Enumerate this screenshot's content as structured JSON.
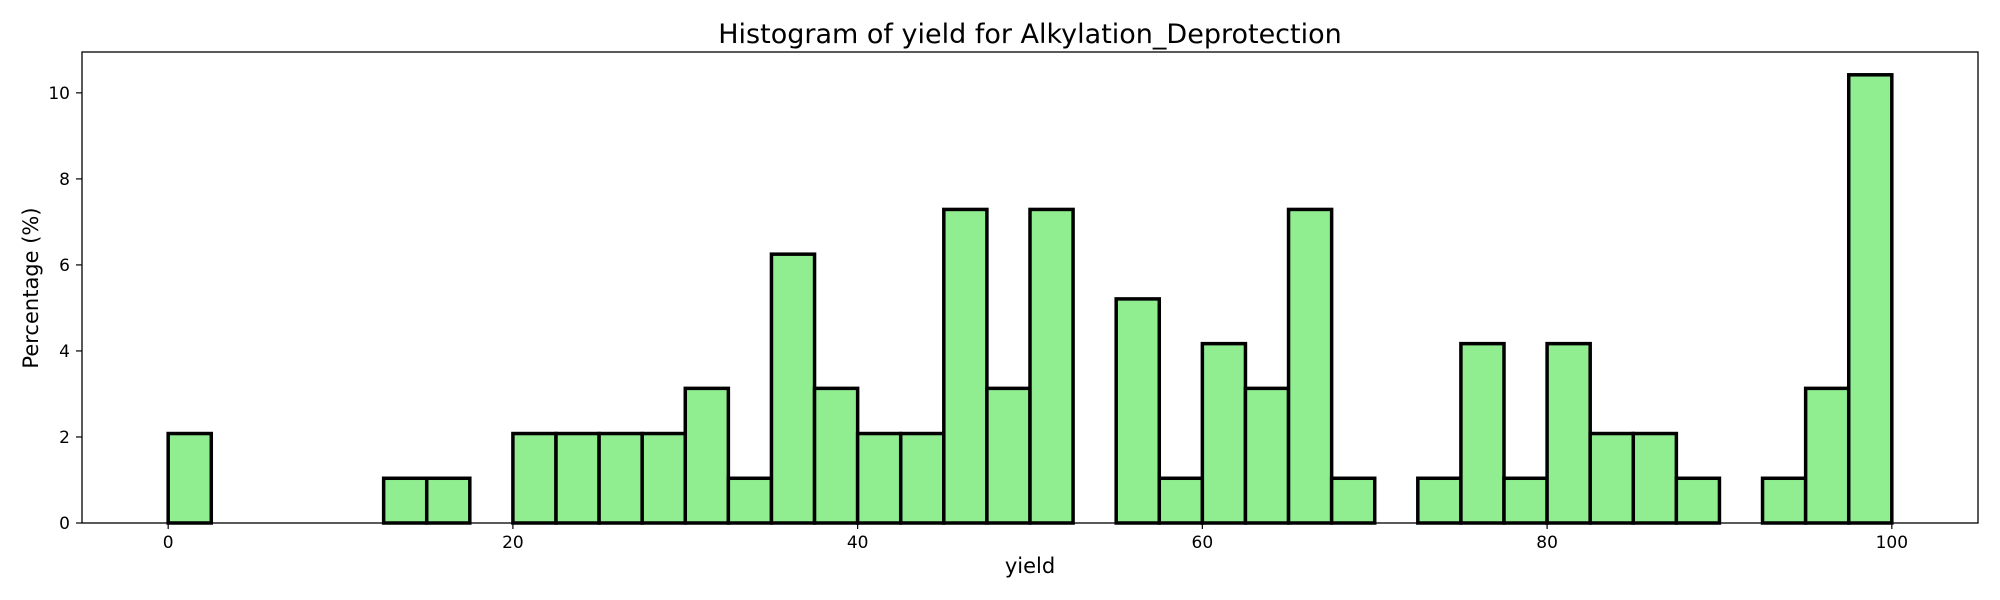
{
  "chart_data": {
    "type": "bar",
    "title": "Histogram of yield for Alkylation_Deprotection",
    "xlabel": "yield",
    "ylabel": "Percentage (%)",
    "bin_width": 2.5,
    "xlim": [
      -5,
      105
    ],
    "ylim": [
      0,
      10.95
    ],
    "x_ticks": [
      0,
      20,
      40,
      60,
      80,
      100
    ],
    "y_ticks": [
      0,
      2,
      4,
      6,
      8,
      10
    ],
    "grid": false,
    "bin_starts": [
      0,
      2.5,
      5,
      7.5,
      10,
      12.5,
      15,
      17.5,
      20,
      22.5,
      25,
      27.5,
      30,
      32.5,
      35,
      37.5,
      40,
      42.5,
      45,
      47.5,
      50,
      52.5,
      55,
      57.5,
      60,
      62.5,
      65,
      67.5,
      70,
      72.5,
      75,
      77.5,
      80,
      82.5,
      85,
      87.5,
      90,
      92.5,
      95,
      97.5
    ],
    "values": [
      2.08,
      0,
      0,
      0,
      0,
      1.04,
      1.04,
      0,
      2.08,
      2.08,
      2.08,
      2.08,
      3.13,
      1.04,
      6.25,
      3.13,
      2.08,
      2.08,
      7.29,
      3.13,
      7.29,
      0,
      5.21,
      1.04,
      4.17,
      3.13,
      7.29,
      1.04,
      0,
      1.04,
      4.17,
      1.04,
      4.17,
      2.08,
      2.08,
      1.04,
      0,
      1.04,
      3.13,
      10.42
    ],
    "colors": {
      "bar_fill": "#90ee90",
      "bar_edge": "#000000"
    }
  }
}
